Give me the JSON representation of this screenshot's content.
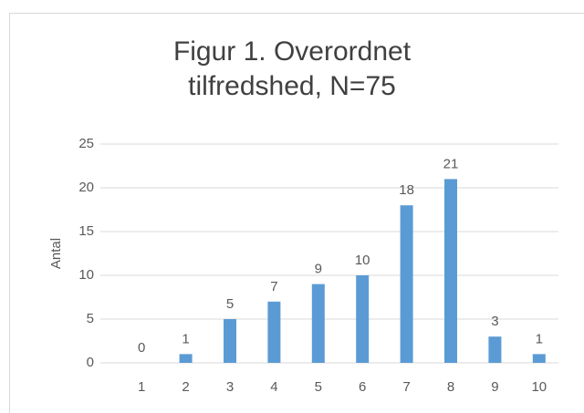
{
  "chart_data": {
    "type": "bar",
    "title": "Figur 1. Overordnet tilfredshed, N=75",
    "ylabel": "Antal",
    "categories": [
      "1",
      "2",
      "3",
      "4",
      "5",
      "6",
      "7",
      "8",
      "9",
      "10"
    ],
    "values": [
      0,
      1,
      5,
      7,
      9,
      10,
      18,
      21,
      3,
      1
    ],
    "color": "#5b9bd5",
    "ylim": [
      0,
      25
    ],
    "yticks": [
      0,
      5,
      10,
      15,
      20,
      25
    ],
    "grid": true
  }
}
